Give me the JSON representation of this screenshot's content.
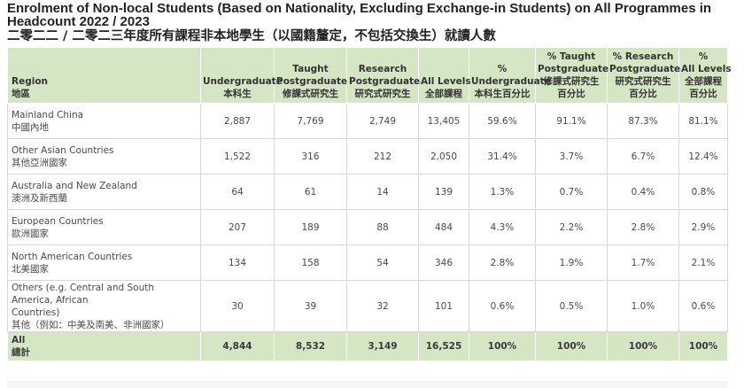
{
  "title": {
    "english": "Enrolment of Non-local Students (Based on Nationality, Excluding Exchange-in Students) on All Programmes in Headcount 2022 / 2023",
    "chinese": "二零二二 / 二零二三年度所有課程非本地學生（以國籍釐定，不包括交換生）就讀人數"
  },
  "headers": [
    {
      "en": [
        "Region"
      ],
      "zh": [
        "地區"
      ]
    },
    {
      "en": [
        "Undergraduate"
      ],
      "zh": [
        "本科生"
      ]
    },
    {
      "en": [
        "Taught",
        "Postgraduate"
      ],
      "zh": [
        "修課式研究生"
      ]
    },
    {
      "en": [
        "Research",
        "Postgraduate"
      ],
      "zh": [
        "研究式研究生"
      ]
    },
    {
      "en": [
        "All Levels"
      ],
      "zh": [
        "全部課程"
      ]
    },
    {
      "en": [
        "%",
        "Undergraduate"
      ],
      "zh": [
        "本科生百分比"
      ]
    },
    {
      "en": [
        "% Taught",
        "Postgraduate"
      ],
      "zh": [
        "修課式研究生",
        "百分比"
      ]
    },
    {
      "en": [
        "% Research",
        "Postgraduate"
      ],
      "zh": [
        "研究式研究生",
        "百分比"
      ]
    },
    {
      "en": [
        "%",
        "All Levels"
      ],
      "zh": [
        "全部課程",
        "百分比"
      ]
    }
  ],
  "rows": [
    {
      "region_en": [
        "Mainland China"
      ],
      "region_zh": "中國內地",
      "values": [
        "2,887",
        "7,769",
        "2,749",
        "13,405",
        "59.6%",
        "91.1%",
        "87.3%",
        "81.1%"
      ]
    },
    {
      "region_en": [
        "Other Asian Countries"
      ],
      "region_zh": "其他亞洲國家",
      "values": [
        "1,522",
        "316",
        "212",
        "2,050",
        "31.4%",
        "3.7%",
        "6.7%",
        "12.4%"
      ]
    },
    {
      "region_en": [
        "Australia and New Zealand"
      ],
      "region_zh": "澳洲及新西蘭",
      "values": [
        "64",
        "61",
        "14",
        "139",
        "1.3%",
        "0.7%",
        "0.4%",
        "0.8%"
      ]
    },
    {
      "region_en": [
        "European Countries"
      ],
      "region_zh": "歐洲國家",
      "values": [
        "207",
        "189",
        "88",
        "484",
        "4.3%",
        "2.2%",
        "2.8%",
        "2.9%"
      ]
    },
    {
      "region_en": [
        "North American Countries"
      ],
      "region_zh": "北美國家",
      "values": [
        "134",
        "158",
        "54",
        "346",
        "2.8%",
        "1.9%",
        "1.7%",
        "2.1%"
      ]
    },
    {
      "region_en": [
        "Others (e.g. Central and South America, African",
        "Countries)"
      ],
      "region_zh": "其他（例如：中美及南美、非洲國家）",
      "values": [
        "30",
        "39",
        "32",
        "101",
        "0.6%",
        "0.5%",
        "1.0%",
        "0.6%"
      ]
    }
  ],
  "total": {
    "region_en": "All",
    "region_zh": "總計",
    "values": [
      "4,844",
      "8,532",
      "3,149",
      "16,525",
      "100%",
      "100%",
      "100%",
      "100%"
    ]
  }
}
